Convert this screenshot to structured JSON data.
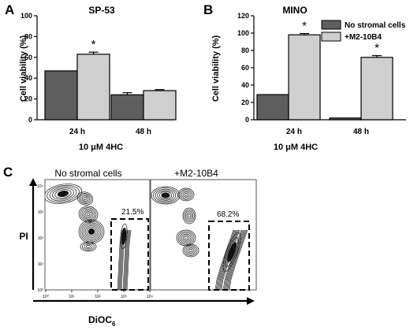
{
  "panels": {
    "a": "A",
    "b": "B",
    "c": "C"
  },
  "chart_data": [
    {
      "type": "bar",
      "title": "SP-53",
      "ylabel": "Cell viability (%)",
      "xlabel": "10 μM 4HC",
      "ylim": [
        0,
        100
      ],
      "yticks": [
        "0",
        "20",
        "40",
        "60",
        "80",
        "100"
      ],
      "categories": [
        "24 h",
        "48 h"
      ],
      "series": [
        {
          "name": "No stromal cells",
          "values": [
            47,
            24
          ],
          "errors": [
            0,
            2
          ],
          "color": "#5e5e5e"
        },
        {
          "name": "+M2-10B4",
          "values": [
            63,
            28
          ],
          "errors": [
            2,
            1
          ],
          "color": "#cfcfcf"
        }
      ],
      "annotations": [
        {
          "text": "*",
          "category": "24 h",
          "series": "+M2-10B4"
        }
      ]
    },
    {
      "type": "bar",
      "title": "MINO",
      "ylabel": "Cell viability (%)",
      "xlabel": "10 μM 4HC",
      "ylim": [
        0,
        120
      ],
      "yticks": [
        "0",
        "20",
        "40",
        "60",
        "80",
        "100",
        "120"
      ],
      "categories": [
        "24 h",
        "48 h"
      ],
      "legend": "top-right",
      "series": [
        {
          "name": "No stromal cells",
          "values": [
            29,
            2
          ],
          "errors": [
            0,
            0
          ],
          "color": "#5e5e5e"
        },
        {
          "name": "+M2-10B4",
          "values": [
            98,
            72
          ],
          "errors": [
            1.5,
            2
          ],
          "color": "#cfcfcf"
        }
      ],
      "annotations": [
        {
          "text": "*",
          "category": "24 h",
          "series": "+M2-10B4"
        },
        {
          "text": "*",
          "category": "48 h",
          "series": "+M2-10B4"
        }
      ]
    },
    {
      "type": "scatter",
      "subtype": "flow-cytometry-contour",
      "ylabel": "PI",
      "xlabel_main": "DiOC",
      "xlabel_sub": "6",
      "xticks": [
        "10⁰",
        "10¹",
        "10²",
        "10³",
        "10⁴"
      ],
      "yticks": [
        "10⁰",
        "10¹",
        "10²",
        "10³",
        "10⁴"
      ],
      "plots": [
        {
          "title": "No stromal cells",
          "gate_percent": "21.5%"
        },
        {
          "title": "+M2-10B4",
          "gate_percent": "68.2%"
        }
      ]
    }
  ]
}
